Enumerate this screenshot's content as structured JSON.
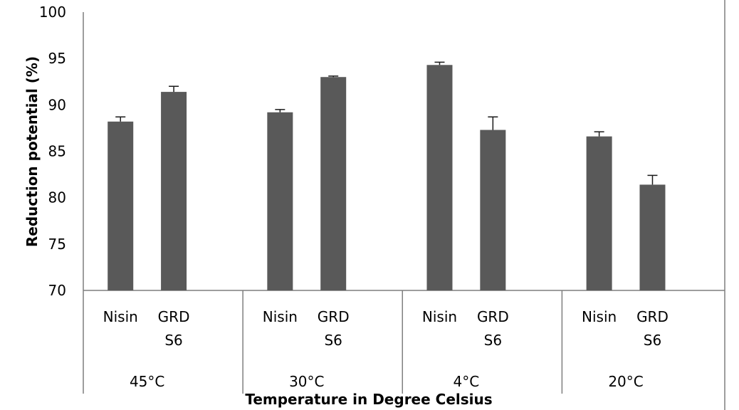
{
  "chart_data": {
    "type": "bar",
    "title": "",
    "xlabel": "Temperature in Degree Celsius",
    "ylabel": "Reduction potential (%)",
    "ylim": [
      70,
      100
    ],
    "yticks": [
      70,
      75,
      80,
      85,
      90,
      95,
      100
    ],
    "grid": false,
    "legend": "none",
    "bar_color": "#595959",
    "groups": [
      {
        "label": "45°C",
        "bars": [
          {
            "label": [
              "Nisin"
            ],
            "value": 88.2,
            "error": 0.5
          },
          {
            "label": [
              "GRD",
              "S6"
            ],
            "value": 91.4,
            "error": 0.6
          }
        ]
      },
      {
        "label": "30°C",
        "bars": [
          {
            "label": [
              "Nisin"
            ],
            "value": 89.2,
            "error": 0.3
          },
          {
            "label": [
              "GRD",
              "S6"
            ],
            "value": 93.0,
            "error": 0.1
          }
        ]
      },
      {
        "label": "4°C",
        "bars": [
          {
            "label": [
              "Nisin"
            ],
            "value": 94.3,
            "error": 0.3
          },
          {
            "label": [
              "GRD",
              "S6"
            ],
            "value": 87.3,
            "error": 1.4
          }
        ]
      },
      {
        "label": "20°C",
        "bars": [
          {
            "label": [
              "Nisin"
            ],
            "value": 86.6,
            "error": 0.5
          },
          {
            "label": [
              "GRD",
              "S6"
            ],
            "value": 81.4,
            "error": 1.0
          }
        ]
      }
    ]
  }
}
